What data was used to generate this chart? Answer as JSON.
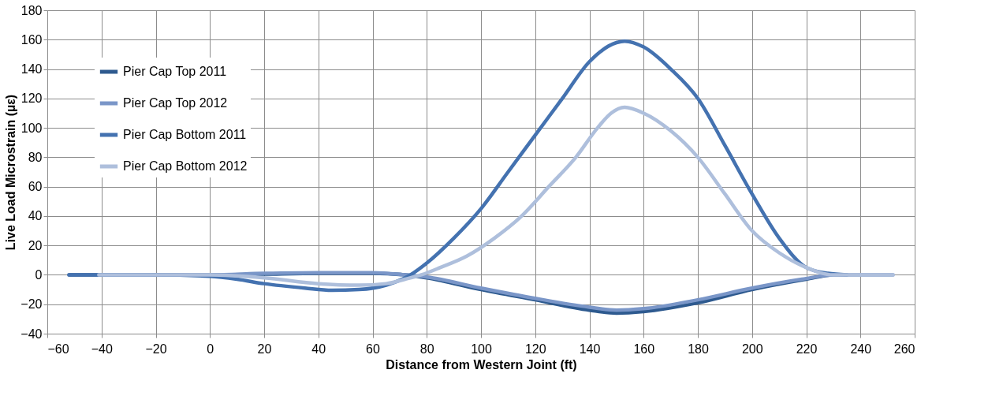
{
  "chart_data": {
    "type": "line",
    "xlabel": "Distance from Western Joint (ft)",
    "ylabel": "Live Load Microstrain (µε)",
    "xlim": [
      -60,
      260
    ],
    "xticks": [
      -60,
      -40,
      -20,
      0,
      20,
      40,
      60,
      80,
      100,
      120,
      140,
      160,
      180,
      200,
      220,
      240,
      260
    ],
    "ylim": [
      -40,
      180
    ],
    "yticks": [
      -40,
      -20,
      0,
      20,
      40,
      60,
      80,
      100,
      120,
      140,
      160,
      180
    ],
    "grid": true,
    "legend": "top left",
    "marker": "none",
    "line_style": "solid",
    "series": [
      {
        "name": "Pier Cap Top 2011",
        "color": "#2e5a8f",
        "x": [
          -52,
          -20,
          0,
          20,
          40,
          60,
          72,
          80,
          100,
          120,
          140,
          150,
          160,
          180,
          200,
          220,
          230,
          235
        ],
        "values": [
          0,
          0,
          0,
          0.5,
          1,
          1,
          0,
          -2,
          -10,
          -17,
          -24,
          -26,
          -25,
          -19,
          -10,
          -3,
          0,
          0
        ]
      },
      {
        "name": "Pier Cap Top 2012",
        "color": "#7a96c8",
        "x": [
          -41,
          -20,
          0,
          20,
          40,
          60,
          72,
          80,
          100,
          120,
          140,
          150,
          160,
          180,
          200,
          220,
          230,
          252
        ],
        "values": [
          0,
          0,
          0,
          1,
          1.5,
          1.5,
          0,
          -1.5,
          -9,
          -16,
          -22,
          -24,
          -23,
          -17,
          -9,
          -2.5,
          0,
          0
        ]
      },
      {
        "name": "Pier Cap Bottom 2011",
        "color": "#4472b0",
        "x": [
          -52,
          -20,
          0,
          10,
          20,
          35,
          45,
          55,
          65,
          74,
          80,
          90,
          100,
          110,
          120,
          130,
          140,
          150,
          153,
          160,
          170,
          180,
          190,
          200,
          210,
          220,
          228,
          235
        ],
        "values": [
          0,
          0,
          -1,
          -3,
          -6,
          -9,
          -10.5,
          -10,
          -7,
          0,
          8,
          25,
          45,
          70,
          95,
          120,
          145,
          158,
          159,
          155,
          140,
          120,
          88,
          55,
          25,
          5,
          1,
          0
        ]
      },
      {
        "name": "Pier Cap Bottom 2012",
        "color": "#aebfdc",
        "x": [
          -41,
          0,
          20,
          40,
          55,
          65,
          72,
          78,
          85,
          95,
          105,
          115,
          125,
          135,
          143,
          148,
          153,
          160,
          170,
          180,
          190,
          200,
          210,
          220,
          230,
          252
        ],
        "values": [
          0,
          0,
          -2,
          -6,
          -7,
          -6,
          -3,
          0,
          5,
          13,
          25,
          40,
          60,
          80,
          100,
          110,
          114,
          110,
          98,
          80,
          55,
          30,
          15,
          5,
          0,
          0
        ]
      }
    ]
  }
}
